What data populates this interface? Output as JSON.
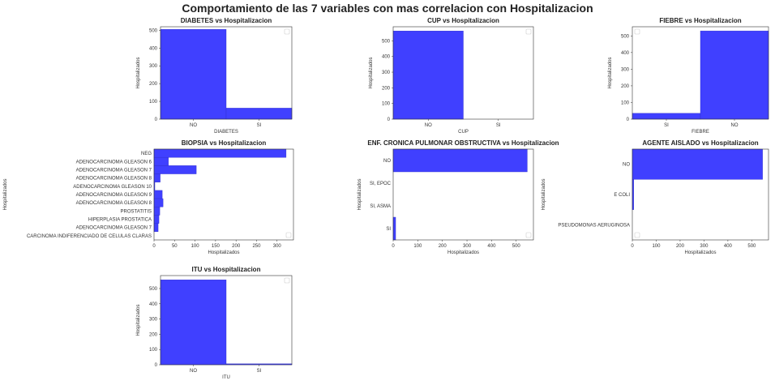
{
  "suptitle": "Comportamiento de las 7 variables con mas correlacion con Hospitalizacion",
  "chart_data": [
    {
      "type": "bar",
      "title": "DIABETES vs Hospitalizacion",
      "xlabel": "DIABETES",
      "ylabel": "Hospitalizados",
      "categories": [
        "NO",
        "SI"
      ],
      "values": [
        505,
        62
      ],
      "ylim": [
        0,
        520
      ],
      "yticks": [
        0,
        100,
        200,
        300,
        400,
        500
      ],
      "color": "#4040ff",
      "legend": "top-right (empty)"
    },
    {
      "type": "bar",
      "title": "CUP vs Hospitalizacion",
      "xlabel": "CUP",
      "ylabel": "Hospitalizados",
      "categories": [
        "NO",
        "SI"
      ],
      "values": [
        563,
        0
      ],
      "ylim": [
        0,
        590
      ],
      "yticks": [
        0,
        100,
        200,
        300,
        400,
        500
      ],
      "color": "#4040ff",
      "legend": "top-right (empty)"
    },
    {
      "type": "bar",
      "title": "FIEBRE vs Hospitalizacion",
      "xlabel": "FIEBRE",
      "ylabel": "Hospitalizados",
      "categories": [
        "SI",
        "NO"
      ],
      "values": [
        35,
        530
      ],
      "ylim": [
        0,
        555
      ],
      "yticks": [
        0,
        100,
        200,
        300,
        400,
        500
      ],
      "color": "#4040ff",
      "legend": "top-left (empty)"
    },
    {
      "type": "barh",
      "title": "BIOPSIA vs Hospitalizacion",
      "xlabel": "Hospitalizados",
      "ylabel": "Hospitalizados",
      "categories": [
        "NEG",
        "ADENOCARCINOMA GLEASON 6",
        "ADENOCARCINOMA GLEASON 7",
        "ADENOCARCINOMA GLEASON 8",
        "ADENOCARCINOMA GLEASON 10",
        "ADENOCARCINOMA GLEASON 9",
        "ADENOCARCINOMA GLEASON 8",
        "PROSTATITIS",
        "HIPERPLASIA PROSTATICA",
        "ADENOCARCINOMA GLEASON 7",
        "CARCINOMA INDIFERENCIADO DE CELULAS CLARAS"
      ],
      "values": [
        322,
        35,
        103,
        15,
        2,
        20,
        22,
        14,
        12,
        10,
        0
      ],
      "xlim": [
        0,
        340
      ],
      "xticks": [
        0,
        50,
        100,
        150,
        200,
        250,
        300
      ],
      "color": "#4040ff",
      "legend": "bottom-right (empty)"
    },
    {
      "type": "barh",
      "title": "ENF. CRONICA PULMONAR OBSTRUCTIVA vs Hospitalizacion",
      "xlabel": "Hospitalizados",
      "ylabel": "Hospitalizados",
      "categories": [
        "NO",
        "SI, EPOC",
        "SI, ASMA",
        "SI"
      ],
      "values": [
        545,
        0,
        0,
        10
      ],
      "xlim": [
        0,
        570
      ],
      "xticks": [
        0,
        100,
        200,
        300,
        400,
        500
      ],
      "color": "#4040ff",
      "legend": "bottom-right (empty)"
    },
    {
      "type": "barh",
      "title": "AGENTE AISLADO vs Hospitalizacion",
      "xlabel": "Hospitalizados",
      "ylabel": "Hospitalizados",
      "categories": [
        "NO",
        "E COLI",
        "PSEUDOMONAS AERUGINOSA"
      ],
      "values": [
        545,
        6,
        0
      ],
      "xlim": [
        0,
        570
      ],
      "xticks": [
        0,
        100,
        200,
        300,
        400,
        500
      ],
      "color": "#4040ff",
      "legend": "bottom-left (empty)"
    },
    {
      "type": "bar",
      "title": "ITU vs Hospitalizacion",
      "xlabel": "ITU",
      "ylabel": "Hospitalizados",
      "categories": [
        "NO",
        "SI"
      ],
      "values": [
        557,
        6
      ],
      "ylim": [
        0,
        585
      ],
      "yticks": [
        0,
        100,
        200,
        300,
        400,
        500
      ],
      "color": "#4040ff",
      "legend": "top-right (empty)"
    }
  ]
}
